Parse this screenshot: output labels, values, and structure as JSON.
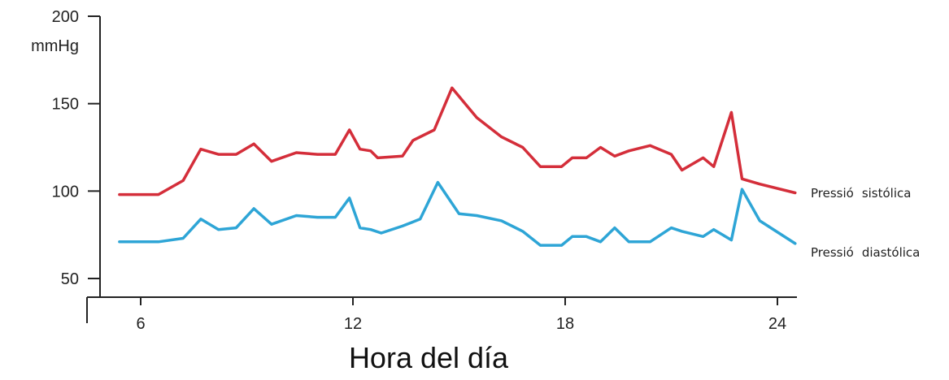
{
  "chart_data": {
    "type": "line",
    "title": "",
    "xlabel": "Hora del día",
    "ylabel": "",
    "y_unit": "mmHg",
    "xlim": [
      4.6,
      24.5
    ],
    "ylim": [
      40,
      200
    ],
    "x_ticks": [
      6,
      12,
      18,
      24
    ],
    "y_ticks": [
      50,
      100,
      150,
      200
    ],
    "grid": false,
    "legend": "inline labels at right end of lines",
    "series": [
      {
        "name": "Pressió sistólica",
        "label_parts": [
          "Pressió",
          "sistólica"
        ],
        "color": "#d42e3a",
        "x": [
          5.4,
          6.2,
          6.5,
          7.2,
          7.7,
          8.2,
          8.7,
          9.2,
          9.7,
          10.4,
          11.0,
          11.5,
          11.9,
          12.2,
          12.5,
          12.7,
          13.4,
          13.7,
          14.3,
          14.8,
          15.5,
          16.2,
          16.8,
          17.3,
          17.9,
          18.2,
          18.6,
          19.0,
          19.4,
          19.8,
          20.4,
          21.0,
          21.3,
          21.9,
          22.2,
          22.7,
          23.0,
          23.5,
          24.5
        ],
        "values": [
          98,
          98,
          98,
          106,
          124,
          121,
          121,
          127,
          117,
          122,
          121,
          121,
          135,
          124,
          123,
          119,
          120,
          129,
          135,
          159,
          142,
          131,
          125,
          114,
          114,
          119,
          119,
          125,
          120,
          123,
          126,
          121,
          112,
          119,
          114,
          145,
          107,
          104,
          99
        ]
      },
      {
        "name": "Pressió diastólica",
        "label_parts": [
          "Pressió",
          "diastólica"
        ],
        "color": "#2ea5d6",
        "x": [
          5.4,
          6.2,
          6.5,
          7.2,
          7.7,
          8.2,
          8.7,
          9.2,
          9.7,
          10.4,
          11.0,
          11.5,
          11.9,
          12.2,
          12.5,
          12.8,
          13.4,
          13.9,
          14.4,
          15.0,
          15.5,
          16.2,
          16.8,
          17.3,
          17.9,
          18.2,
          18.6,
          19.0,
          19.4,
          19.8,
          20.4,
          21.0,
          21.3,
          21.9,
          22.2,
          22.7,
          23.0,
          23.5,
          24.5
        ],
        "values": [
          71,
          71,
          71,
          73,
          84,
          78,
          79,
          90,
          81,
          86,
          85,
          85,
          96,
          79,
          78,
          76,
          80,
          84,
          105,
          87,
          86,
          83,
          77,
          69,
          69,
          74,
          74,
          71,
          79,
          71,
          71,
          79,
          77,
          74,
          78,
          72,
          101,
          83,
          70
        ]
      }
    ]
  }
}
